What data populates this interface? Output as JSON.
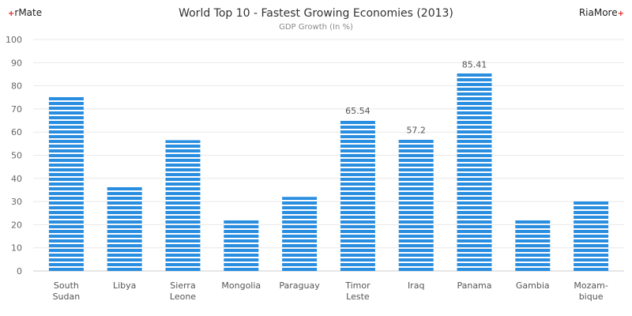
{
  "branding": {
    "left": "rMate",
    "right": "RiaMore",
    "plus": "+"
  },
  "chart_data": {
    "type": "bar",
    "title": "World Top 10 - Fastest Growing Economies (2013)",
    "subtitle": "GDP Growth (In %)",
    "categories": [
      [
        "South",
        "Sudan"
      ],
      [
        "Libya"
      ],
      [
        "Sierra",
        "Leone"
      ],
      [
        "Mongolia"
      ],
      [
        "Paraguay"
      ],
      [
        "Timor",
        "Leste"
      ],
      [
        "Iraq"
      ],
      [
        "Panama"
      ],
      [
        "Gambia"
      ],
      [
        "Mozam-",
        "bique"
      ]
    ],
    "values": [
      76,
      37,
      56.5,
      22.5,
      32,
      65.54,
      57.2,
      85.41,
      23.5,
      31
    ],
    "data_labels": [
      "",
      "",
      "",
      "",
      "",
      "65.54",
      "57.2",
      "85.41",
      "",
      ""
    ],
    "ylim": [
      0,
      100
    ],
    "yticks": [
      "0",
      "10",
      "20",
      "30",
      "40",
      "50",
      "60",
      "70",
      "80",
      "90",
      "100"
    ],
    "grid": true,
    "bar_color": "#2a8ee0",
    "grid_color": "#e8e8e8"
  }
}
